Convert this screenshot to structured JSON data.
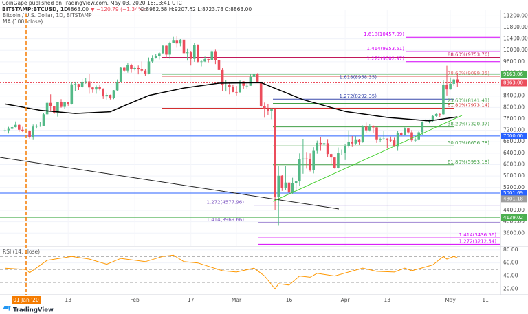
{
  "header": {
    "published": "CoinGape published on TradingView.com, May 03, 2020 16:13:41 UTC",
    "symbol": "BITSTAMP:BTCUSD, 1D",
    "last": "8863.00",
    "change": "▼ −120.79 (−1.34%)",
    "ohlc": "O:8982.58 H:9207.62 L:8723.78 C:8863.00"
  },
  "footer": {
    "logo": "TradingView"
  },
  "chart_data": [
    {
      "type": "candlestick",
      "title": "Bitcoin / U.S. Dollar, 1D, BITSTAMP",
      "up_color": "#53b987",
      "down_color": "#eb4d5c",
      "grid": true,
      "x": [
        "2019-12-26",
        "2019-12-27",
        "2019-12-28",
        "2019-12-29",
        "2019-12-30",
        "2019-12-31",
        "2020-01-01",
        "2020-01-02",
        "2020-01-03",
        "2020-01-04",
        "2020-01-05",
        "2020-01-06",
        "2020-01-07",
        "2020-01-08",
        "2020-01-09",
        "2020-01-10",
        "2020-01-11",
        "2020-01-12",
        "2020-01-13",
        "2020-01-14",
        "2020-01-15",
        "2020-01-16",
        "2020-01-17",
        "2020-01-18",
        "2020-01-19",
        "2020-01-20",
        "2020-01-21",
        "2020-01-22",
        "2020-01-23",
        "2020-01-24",
        "2020-01-25",
        "2020-01-26",
        "2020-01-27",
        "2020-01-28",
        "2020-01-29",
        "2020-01-30",
        "2020-01-31",
        "2020-02-01",
        "2020-02-02",
        "2020-02-03",
        "2020-02-04",
        "2020-02-05",
        "2020-02-06",
        "2020-02-07",
        "2020-02-08",
        "2020-02-09",
        "2020-02-10",
        "2020-02-11",
        "2020-02-12",
        "2020-02-13",
        "2020-02-14",
        "2020-02-15",
        "2020-02-16",
        "2020-02-17",
        "2020-02-18",
        "2020-02-19",
        "2020-02-20",
        "2020-02-21",
        "2020-02-22",
        "2020-02-23",
        "2020-02-24",
        "2020-02-25",
        "2020-02-26",
        "2020-02-27",
        "2020-02-28",
        "2020-02-29",
        "2020-03-01",
        "2020-03-02",
        "2020-03-03",
        "2020-03-04",
        "2020-03-05",
        "2020-03-06",
        "2020-03-07",
        "2020-03-08",
        "2020-03-09",
        "2020-03-10",
        "2020-03-11",
        "2020-03-12",
        "2020-03-13",
        "2020-03-14",
        "2020-03-15",
        "2020-03-16",
        "2020-03-17",
        "2020-03-18",
        "2020-03-19",
        "2020-03-20",
        "2020-03-21",
        "2020-03-22",
        "2020-03-23",
        "2020-03-24",
        "2020-03-25",
        "2020-03-26",
        "2020-03-27",
        "2020-03-28",
        "2020-03-29",
        "2020-03-30",
        "2020-03-31",
        "2020-04-01",
        "2020-04-02",
        "2020-04-03",
        "2020-04-04",
        "2020-04-05",
        "2020-04-06",
        "2020-04-07",
        "2020-04-08",
        "2020-04-09",
        "2020-04-10",
        "2020-04-11",
        "2020-04-12",
        "2020-04-13",
        "2020-04-14",
        "2020-04-15",
        "2020-04-16",
        "2020-04-17",
        "2020-04-18",
        "2020-04-19",
        "2020-04-20",
        "2020-04-21",
        "2020-04-22",
        "2020-04-23",
        "2020-04-24",
        "2020-04-25",
        "2020-04-26",
        "2020-04-27",
        "2020-04-28",
        "2020-04-29",
        "2020-04-30",
        "2020-05-01",
        "2020-05-02",
        "2020-05-03"
      ],
      "open": [
        7190,
        7200,
        7250,
        7310,
        7390,
        7220,
        7170,
        7180,
        6950,
        7330,
        7350,
        7360,
        7760,
        8160,
        8040,
        7820,
        8180,
        8020,
        8180,
        8110,
        8810,
        8820,
        8720,
        8900,
        8910,
        8700,
        8630,
        8730,
        8660,
        8390,
        8440,
        8330,
        8600,
        8900,
        9390,
        9290,
        9500,
        9340,
        9380,
        9330,
        9290,
        9180,
        9610,
        9740,
        9800,
        9900,
        10160,
        9850,
        10270,
        10360,
        10240,
        10370,
        9900,
        9930,
        9700,
        10180,
        9600,
        9610,
        9690,
        9660,
        9970,
        9660,
        9310,
        8780,
        8800,
        8720,
        8540,
        8530,
        8910,
        8760,
        8760,
        9070,
        9160,
        8900,
        8040,
        7940,
        7890,
        7940,
        4860,
        5610,
        5190,
        5370,
        5020,
        5360,
        5410,
        6180,
        6210,
        6190,
        5820,
        6480,
        6760,
        6700,
        6750,
        6370,
        6250,
        5880,
        6400,
        6420,
        6650,
        6800,
        6740,
        6860,
        6780,
        7330,
        7200,
        7360,
        7300,
        6860,
        6880,
        6910,
        6860,
        6850,
        6630,
        7110,
        7030,
        7260,
        7130,
        6850,
        6860,
        7130,
        7490,
        7510,
        7540,
        7700,
        7770,
        7760,
        8780,
        8630,
        8830,
        8982.58
      ],
      "high": [
        7280,
        7320,
        7370,
        7510,
        7420,
        7320,
        7250,
        7200,
        7400,
        7400,
        7490,
        7800,
        8210,
        8460,
        8050,
        8200,
        8290,
        8190,
        8200,
        8890,
        8900,
        8830,
        9000,
        9020,
        9180,
        8720,
        8770,
        8790,
        8670,
        8520,
        8450,
        8610,
        8980,
        9420,
        9430,
        9570,
        9530,
        9440,
        9470,
        9610,
        9340,
        9750,
        9830,
        9870,
        9940,
        10180,
        10170,
        10300,
        10470,
        10500,
        10390,
        10380,
        10060,
        9980,
        10250,
        10210,
        9650,
        9780,
        9700,
        9990,
        10020,
        9670,
        9380,
        8970,
        8900,
        8780,
        8750,
        8960,
        8920,
        8840,
        9150,
        9170,
        9200,
        8900,
        8170,
        8130,
        7980,
        7970,
        5950,
        5650,
        5940,
        5370,
        5540,
        5440,
        6390,
        6900,
        6440,
        6390,
        6610,
        6840,
        6960,
        6790,
        6870,
        6380,
        6260,
        6600,
        6530,
        6720,
        7200,
        7000,
        6990,
        6880,
        7370,
        7470,
        7430,
        7370,
        7310,
        6940,
        7190,
        6920,
        6980,
        6940,
        7180,
        7140,
        7300,
        7260,
        7210,
        6940,
        7170,
        7510,
        7600,
        7580,
        7720,
        7790,
        7790,
        8970,
        9460,
        9050,
        9000,
        9207.62
      ],
      "low": [
        7130,
        7090,
        7230,
        7300,
        7150,
        7140,
        7150,
        6910,
        6860,
        7260,
        7320,
        7340,
        7720,
        7880,
        7770,
        7680,
        7990,
        7960,
        8060,
        8100,
        8580,
        8610,
        8680,
        8830,
        8480,
        8520,
        8480,
        8600,
        8300,
        8250,
        8280,
        8290,
        8570,
        8880,
        9240,
        9220,
        9220,
        9300,
        9160,
        9230,
        9100,
        9160,
        9550,
        9710,
        9680,
        9880,
        9730,
        9700,
        10250,
        10090,
        10140,
        9850,
        9640,
        9470,
        9600,
        9580,
        9440,
        9590,
        9580,
        9650,
        9520,
        9270,
        8580,
        8560,
        8460,
        8530,
        8420,
        8520,
        8660,
        8660,
        8760,
        9010,
        8880,
        8000,
        7640,
        7740,
        7590,
        4400,
        3860,
        5080,
        5100,
        4470,
        4960,
        5100,
        5260,
        5680,
        5860,
        5760,
        5690,
        6380,
        6480,
        6540,
        6270,
        6030,
        5860,
        5860,
        6350,
        6160,
        6600,
        6620,
        6690,
        6690,
        6770,
        7120,
        7160,
        7120,
        6760,
        6780,
        6860,
        6560,
        6790,
        6620,
        6480,
        6990,
        7020,
        7080,
        6800,
        6800,
        6850,
        7030,
        7470,
        7450,
        7500,
        7650,
        7670,
        7740,
        8420,
        8620,
        8760,
        8723.78
      ],
      "close": [
        7200,
        7250,
        7310,
        7390,
        7220,
        7170,
        7180,
        6950,
        7330,
        7350,
        7360,
        7760,
        8160,
        8040,
        7820,
        8180,
        8020,
        8180,
        8110,
        8810,
        8820,
        8720,
        8900,
        8910,
        8700,
        8630,
        8730,
        8660,
        8390,
        8440,
        8330,
        8600,
        8900,
        9390,
        9290,
        9500,
        9340,
        9380,
        9330,
        9290,
        9180,
        9610,
        9740,
        9800,
        9900,
        10160,
        9850,
        10270,
        10360,
        10240,
        10370,
        9900,
        9930,
        9700,
        10180,
        9600,
        9610,
        9690,
        9660,
        9970,
        9660,
        9310,
        8780,
        8800,
        8720,
        8540,
        8530,
        8910,
        8760,
        8760,
        9070,
        9160,
        8900,
        8040,
        7940,
        7890,
        7940,
        4860,
        5610,
        5190,
        5370,
        5020,
        5360,
        5410,
        6180,
        6210,
        6190,
        5820,
        6480,
        6760,
        6700,
        6750,
        6370,
        6250,
        5880,
        6400,
        6420,
        6650,
        6800,
        6740,
        6860,
        6780,
        7330,
        7200,
        7360,
        7300,
        6860,
        6880,
        6910,
        6860,
        6850,
        6630,
        7110,
        7030,
        7260,
        7130,
        6850,
        6860,
        7130,
        7490,
        7510,
        7540,
        7700,
        7770,
        7760,
        8780,
        8630,
        8830,
        8980,
        8863
      ],
      "lines": [
        {
          "name": "MA (100, close)",
          "color": "#000000",
          "x": [
            "2019-12-26",
            "2020-01-05",
            "2020-01-15",
            "2020-01-25",
            "2020-02-05",
            "2020-02-15",
            "2020-02-25",
            "2020-03-08",
            "2020-03-13",
            "2020-03-20",
            "2020-04-01",
            "2020-04-13",
            "2020-04-25",
            "2020-05-03"
          ],
          "values": [
            8120,
            7900,
            7790,
            7850,
            8420,
            8680,
            8850,
            8870,
            8620,
            8270,
            7860,
            7650,
            7530,
            7670
          ]
        }
      ],
      "levels": [
        {
          "label": "1.618(10457.09)",
          "value": 10457.09,
          "color": "#d500f9"
        },
        {
          "label": "1.414(9953.51)",
          "value": 9953.51,
          "color": "#d500f9"
        },
        {
          "label": "88.60%(9753.76)",
          "value": 9753.76,
          "color": "#c2185b"
        },
        {
          "label": "1.272(9602.97)",
          "value": 9602.97,
          "color": "#d500f9"
        },
        {
          "label": "78.60%(9089.35)",
          "value": 9089.35,
          "color": "#e57373"
        },
        {
          "label": "1.618(8958.35)",
          "value": 8958.35,
          "color": "#3949ab"
        },
        {
          "label": "1.272(8292.35)",
          "value": 8292.35,
          "color": "#3949ab"
        },
        {
          "label": "23.60%(8141.43)",
          "value": 8141.43,
          "color": "#43a047"
        },
        {
          "label": "61.80%(7973.14)",
          "value": 7973.14,
          "color": "#d32f2f"
        },
        {
          "label": "38.20%(7320.37)",
          "value": 7320.37,
          "color": "#43a047"
        },
        {
          "label": "50.00%(6656.78)",
          "value": 6656.78,
          "color": "#43a047"
        },
        {
          "label": "61.80%(5993.18)",
          "value": 5993.18,
          "color": "#43a047"
        },
        {
          "label": "1.272(4577.96)",
          "value": 4577.96,
          "color": "#7e57c2"
        },
        {
          "label": "1.414(3969.66)",
          "value": 3969.66,
          "color": "#7e57c2"
        },
        {
          "label": "1.272(3212.54)",
          "value": 3212.54,
          "color": "#d500f9"
        },
        {
          "label": "1.414(3436.56)",
          "value": 3436.56,
          "color": "#d500f9"
        }
      ],
      "price_tags": [
        {
          "label": "9163.06",
          "value": 9163.06,
          "color": "#4caf50"
        },
        {
          "label": "8863.00",
          "value": 8863,
          "color": "#eb4d5c"
        },
        {
          "label": "7000.00",
          "value": 7000,
          "color": "#2962ff"
        },
        {
          "label": "5001.69",
          "value": 5001.69,
          "color": "#2962ff"
        },
        {
          "label": "4801.18",
          "value": 4801.18,
          "color": "#9e9e9e"
        },
        {
          "label": "4139.02",
          "value": 4139.02,
          "color": "#4caf50"
        }
      ],
      "ylim": [
        3150,
        11400
      ],
      "yticks": [
        {
          "value": 3600,
          "label": "3600.00"
        },
        {
          "value": 4000,
          "label": "4000.00"
        },
        {
          "value": 4400,
          "label": "4400.00"
        },
        {
          "value": 4800,
          "label": "4800.00"
        },
        {
          "value": 5200,
          "label": "5200.00"
        },
        {
          "value": 5600,
          "label": "5600.00"
        },
        {
          "value": 6000,
          "label": "6000.00"
        },
        {
          "value": 6400,
          "label": "6400.00"
        },
        {
          "value": 6800,
          "label": "6800.00"
        },
        {
          "value": 7200,
          "label": "7200.00"
        },
        {
          "value": 7600,
          "label": "7600.00"
        },
        {
          "value": 8000,
          "label": "8000.00"
        },
        {
          "value": 8400,
          "label": "8400.00"
        },
        {
          "value": 8800,
          "label": "8800.00"
        },
        {
          "value": 9200,
          "label": "9200.00"
        },
        {
          "value": 9600,
          "label": "9600.00"
        },
        {
          "value": 10000,
          "label": "10000.00"
        },
        {
          "value": 10400,
          "label": "10400.00"
        },
        {
          "value": 10800,
          "label": "10800.00"
        },
        {
          "value": 11200,
          "label": "11200.00"
        }
      ],
      "xticks": [
        {
          "value": "2020-01-01",
          "label": "01 Jan '20"
        },
        {
          "value": "2020-01-13",
          "label": "13"
        },
        {
          "value": "2020-02-01",
          "label": "Feb"
        },
        {
          "value": "2020-02-17",
          "label": "17"
        },
        {
          "value": "2020-03-01",
          "label": "Mar"
        },
        {
          "value": "2020-03-16",
          "label": "16"
        },
        {
          "value": "2020-04-01",
          "label": "Apr"
        },
        {
          "value": "2020-04-13",
          "label": "13"
        },
        {
          "value": "2020-05-01",
          "label": "May"
        },
        {
          "value": "2020-05-11",
          "label": "11"
        }
      ]
    },
    {
      "type": "line",
      "title": "RSI (14, close)",
      "color": "#ff9800",
      "x": [
        "2019-12-26",
        "2020-01-01",
        "2020-01-02",
        "2020-01-07",
        "2020-01-14",
        "2020-01-19",
        "2020-01-24",
        "2020-01-28",
        "2020-02-04",
        "2020-02-09",
        "2020-02-12",
        "2020-02-15",
        "2020-02-19",
        "2020-02-26",
        "2020-03-01",
        "2020-03-06",
        "2020-03-09",
        "2020-03-12",
        "2020-03-13",
        "2020-03-16",
        "2020-03-19",
        "2020-03-22",
        "2020-03-24",
        "2020-03-29",
        "2020-04-06",
        "2020-04-10",
        "2020-04-15",
        "2020-04-18",
        "2020-04-20",
        "2020-04-26",
        "2020-04-29",
        "2020-04-30",
        "2020-05-02",
        "2020-05-03"
      ],
      "values": [
        52,
        50,
        45,
        64,
        70,
        66,
        58,
        67,
        62,
        70,
        72,
        62,
        60,
        48,
        46,
        52,
        40,
        20,
        28,
        26,
        40,
        38,
        44,
        40,
        52,
        47,
        46,
        52,
        48,
        57,
        70,
        66,
        70,
        68
      ],
      "bands": [
        30,
        50,
        70
      ],
      "ylim": [
        12,
        84
      ],
      "yticks": [
        {
          "value": 20,
          "label": "20.00"
        },
        {
          "value": 40,
          "label": "40.00"
        },
        {
          "value": 60,
          "label": "60.00"
        },
        {
          "value": 80,
          "label": "80.00"
        }
      ]
    }
  ]
}
